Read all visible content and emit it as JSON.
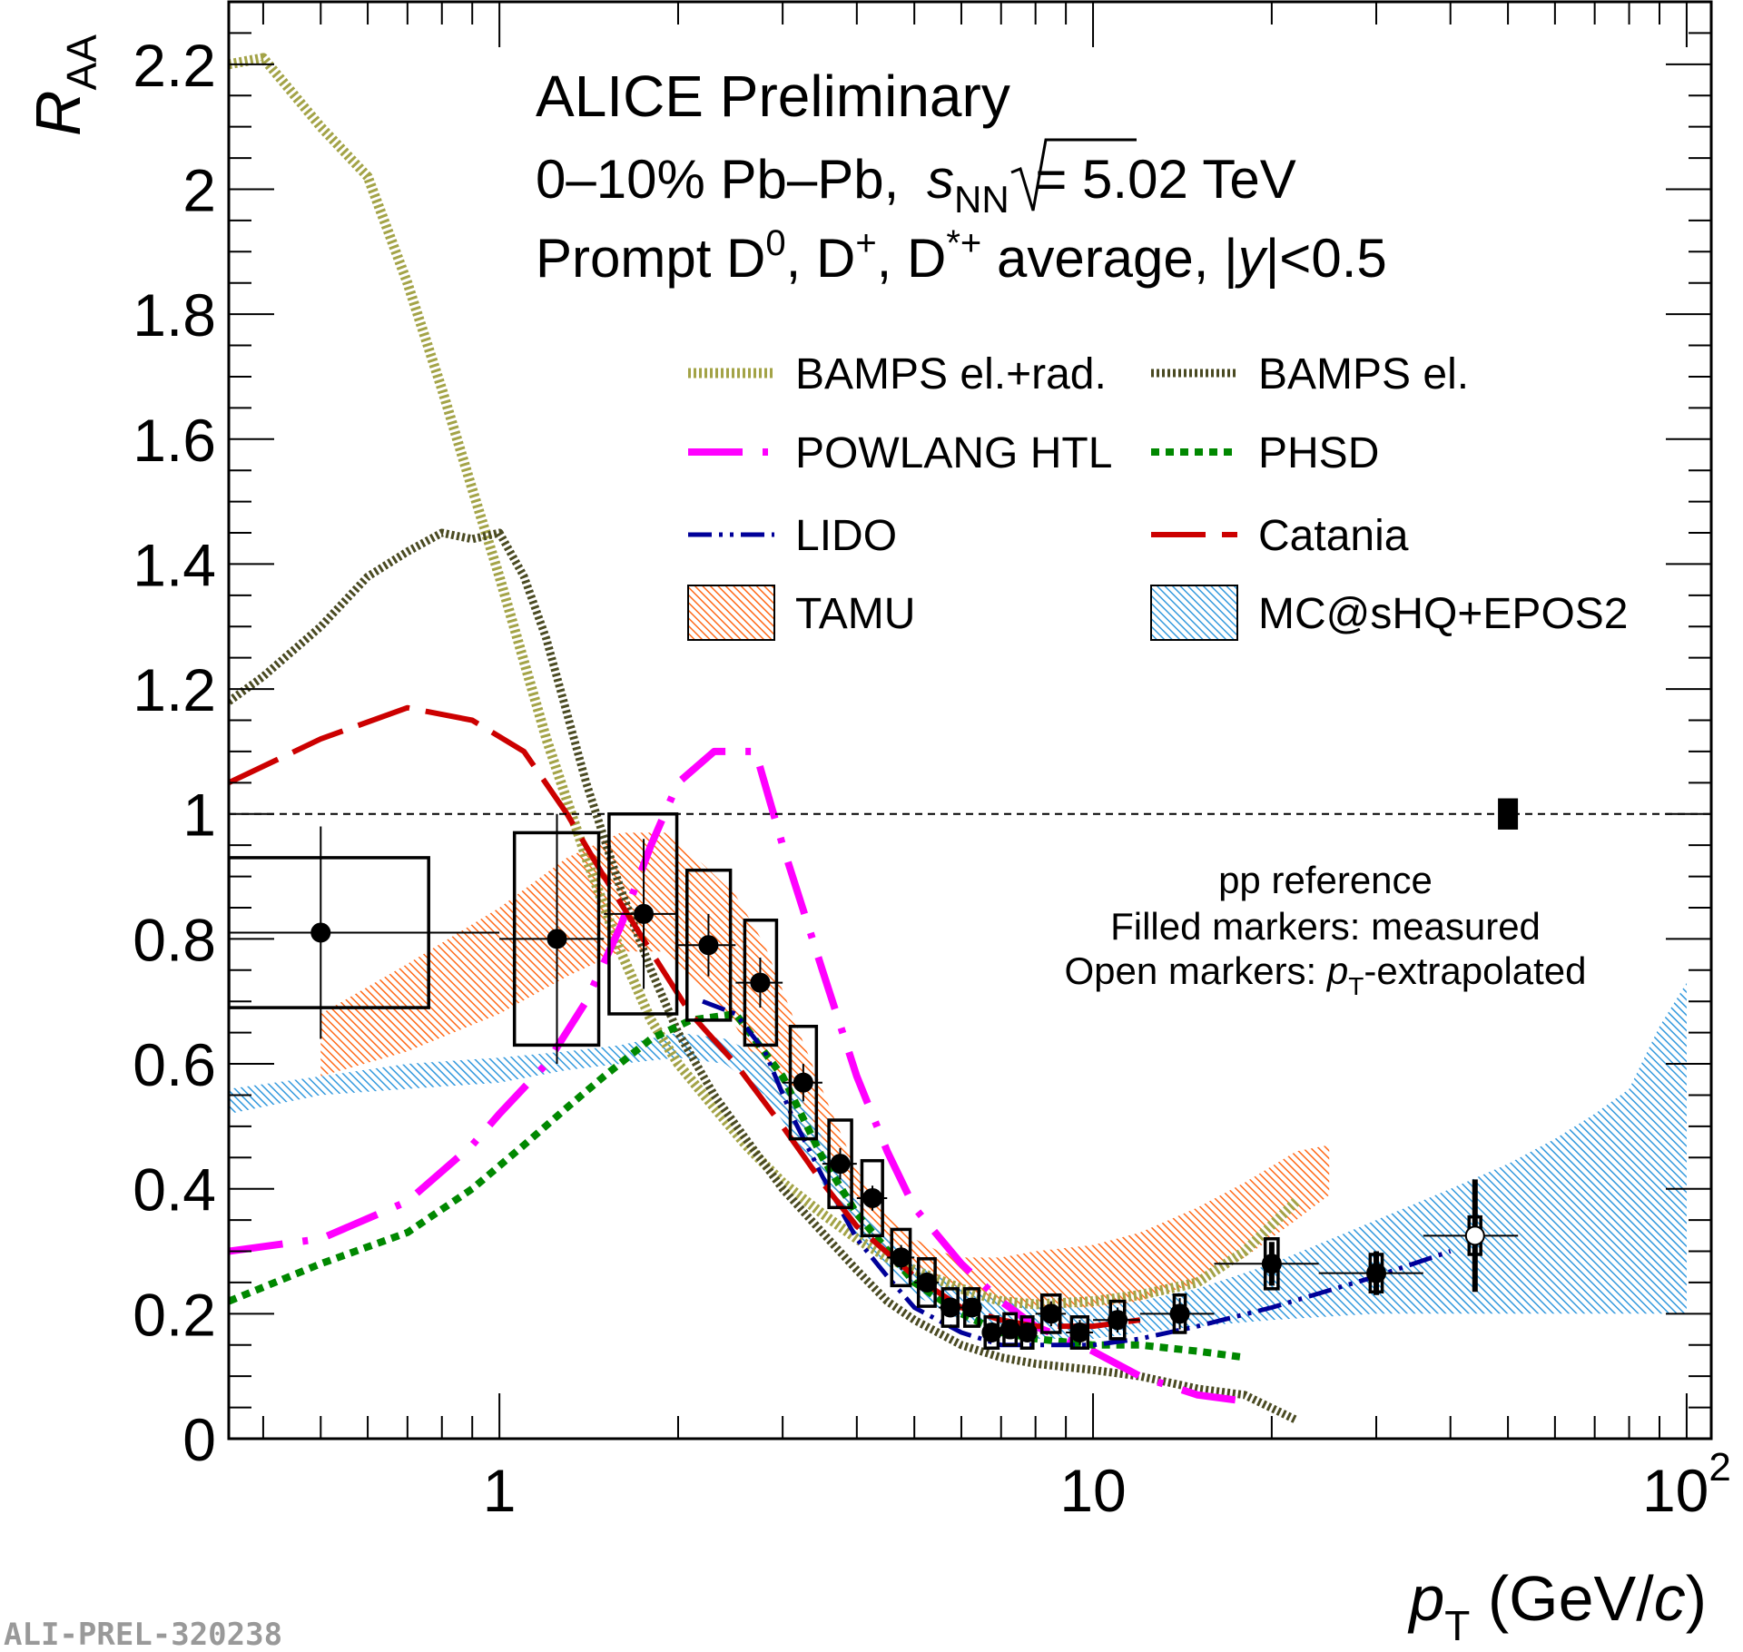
{
  "chart_data": {
    "type": "scatter",
    "title": "ALICE Preliminary",
    "subtitle": [
      "0–10%  Pb–Pb, √sNN = 5.02 TeV",
      "Prompt D0, D+, D*+ average, |y|<0.5"
    ],
    "header": {
      "line1": "ALICE Preliminary",
      "line2_prefix": "0–10%  Pb–Pb,",
      "line2_s": "s",
      "line2_nn": "NN",
      "line2_suffix": "= 5.02 TeV",
      "line3_a": "Prompt D",
      "line3_sup0": "0",
      "line3_b": ", D",
      "line3_supplus": "+",
      "line3_c": ", D",
      "line3_supstar": "*+",
      "line3_d": " average, |",
      "line3_y": "y",
      "line3_e": "|<0.5"
    },
    "xlabel": {
      "p": "p",
      "sub": "T",
      "unit_open": " (GeV/",
      "c": "c",
      "unit_close": ")"
    },
    "ylabel": {
      "R": "R",
      "sub": "AA"
    },
    "xscale": "log",
    "xlim": [
      0.35,
      110
    ],
    "ylim": [
      0,
      2.3
    ],
    "x_ticks": [
      {
        "value": 1,
        "label": "1"
      },
      {
        "value": 10,
        "label": "10"
      },
      {
        "value": 100,
        "label": "10",
        "sup": "2"
      }
    ],
    "y_ticks": [
      {
        "value": 0,
        "label": "0"
      },
      {
        "value": 0.2,
        "label": "0.2"
      },
      {
        "value": 0.4,
        "label": "0.4"
      },
      {
        "value": 0.6,
        "label": "0.6"
      },
      {
        "value": 0.8,
        "label": "0.8"
      },
      {
        "value": 1.0,
        "label": "1"
      },
      {
        "value": 1.2,
        "label": "1.2"
      },
      {
        "value": 1.4,
        "label": "1.4"
      },
      {
        "value": 1.6,
        "label": "1.6"
      },
      {
        "value": 1.8,
        "label": "1.8"
      },
      {
        "value": 2.0,
        "label": "2"
      },
      {
        "value": 2.2,
        "label": "2.2"
      }
    ],
    "reference_line": 1.0,
    "pp_reference": {
      "x": 50,
      "y": 1.0,
      "unc": 0.025,
      "line1": "pp reference",
      "line2": "Filled markers: measured",
      "line3_a": "Open markers: ",
      "line3_p": "p",
      "line3_sub": "T",
      "line3_b": "-extrapolated"
    },
    "watermark": "ALI-PREL-320238",
    "colors": {
      "bamps_elrad": "#a3a347",
      "bamps_el": "#4a4a22",
      "powlang": "#ff00ff",
      "phsd": "#008800",
      "lido": "#000099",
      "catania": "#cc0000",
      "tamu": "#ff6a1a",
      "mcshq": "#3399dd",
      "data": "#000000"
    },
    "legend": [
      {
        "key": "bamps_elrad",
        "label": "BAMPS el.+rad.",
        "style": "dotted-thick"
      },
      {
        "key": "bamps_el",
        "label": "BAMPS el.",
        "style": "dotted-thick"
      },
      {
        "key": "powlang",
        "label": "POWLANG HTL",
        "style": "dashdot-long"
      },
      {
        "key": "phsd",
        "label": "PHSD",
        "style": "dotted"
      },
      {
        "key": "lido",
        "label": "LIDO",
        "style": "dashdotdot"
      },
      {
        "key": "catania",
        "label": "Catania",
        "style": "dashed-long"
      },
      {
        "key": "tamu",
        "label": "TAMU",
        "style": "hatched-band"
      },
      {
        "key": "mcshq",
        "label": "MC@sHQ+EPOS2",
        "style": "hatched-band"
      }
    ],
    "data_points": [
      {
        "x": 0.5,
        "y": 0.81,
        "ex": [
          0.15,
          0.5
        ],
        "stat": 0.17,
        "sys": 0.12,
        "boxw": [
          0.35,
          0.76
        ],
        "open": false
      },
      {
        "x": 1.25,
        "y": 0.8,
        "ex": [
          0.25,
          0.25
        ],
        "stat": 0.2,
        "sys": 0.17,
        "boxw": [
          1.06,
          1.47
        ],
        "open": false
      },
      {
        "x": 1.75,
        "y": 0.84,
        "ex": [
          0.25,
          0.25
        ],
        "stat": 0.12,
        "sys": 0.16,
        "boxw": [
          1.53,
          1.99
        ],
        "open": false
      },
      {
        "x": 2.25,
        "y": 0.79,
        "ex": [
          0.25,
          0.25
        ],
        "stat": 0.05,
        "sys": 0.12,
        "boxw": [
          2.07,
          2.45
        ],
        "open": false
      },
      {
        "x": 2.75,
        "y": 0.73,
        "ex": [
          0.25,
          0.25
        ],
        "stat": 0.04,
        "sys": 0.1,
        "boxw": [
          2.59,
          2.93
        ],
        "open": false
      },
      {
        "x": 3.25,
        "y": 0.57,
        "ex": [
          0.25,
          0.25
        ],
        "stat": 0.03,
        "sys": 0.09,
        "boxw": [
          3.09,
          3.42
        ],
        "open": false
      },
      {
        "x": 3.75,
        "y": 0.44,
        "ex": [
          0.25,
          0.25
        ],
        "stat": 0.025,
        "sys": 0.07,
        "boxw": [
          3.59,
          3.92
        ],
        "open": false
      },
      {
        "x": 4.25,
        "y": 0.385,
        "ex": [
          0.25,
          0.25
        ],
        "stat": 0.02,
        "sys": 0.06,
        "boxw": [
          4.08,
          4.42
        ],
        "open": false
      },
      {
        "x": 4.75,
        "y": 0.29,
        "ex": [
          0.25,
          0.25
        ],
        "stat": 0.02,
        "sys": 0.045,
        "boxw": [
          4.58,
          4.92
        ],
        "open": false
      },
      {
        "x": 5.25,
        "y": 0.25,
        "ex": [
          0.25,
          0.25
        ],
        "stat": 0.015,
        "sys": 0.038,
        "boxw": [
          5.08,
          5.42
        ],
        "open": false
      },
      {
        "x": 5.75,
        "y": 0.21,
        "ex": [
          0.25,
          0.25
        ],
        "stat": 0.015,
        "sys": 0.03,
        "boxw": [
          5.58,
          5.92
        ],
        "open": false
      },
      {
        "x": 6.25,
        "y": 0.21,
        "ex": [
          0.25,
          0.25
        ],
        "stat": 0.015,
        "sys": 0.03,
        "boxw": [
          6.08,
          6.42
        ],
        "open": false
      },
      {
        "x": 6.75,
        "y": 0.17,
        "ex": [
          0.25,
          0.25
        ],
        "stat": 0.015,
        "sys": 0.025,
        "boxw": [
          6.58,
          6.92
        ],
        "open": false
      },
      {
        "x": 7.25,
        "y": 0.175,
        "ex": [
          0.25,
          0.25
        ],
        "stat": 0.015,
        "sys": 0.025,
        "boxw": [
          7.08,
          7.42
        ],
        "open": false
      },
      {
        "x": 7.75,
        "y": 0.17,
        "ex": [
          0.25,
          0.25
        ],
        "stat": 0.015,
        "sys": 0.025,
        "boxw": [
          7.58,
          7.92
        ],
        "open": false
      },
      {
        "x": 8.5,
        "y": 0.2,
        "ex": [
          0.5,
          0.5
        ],
        "stat": 0.02,
        "sys": 0.03,
        "boxw": [
          8.2,
          8.8
        ],
        "open": false
      },
      {
        "x": 9.5,
        "y": 0.17,
        "ex": [
          0.5,
          0.5
        ],
        "stat": 0.02,
        "sys": 0.025,
        "boxw": [
          9.2,
          9.8
        ],
        "open": false
      },
      {
        "x": 11.0,
        "y": 0.19,
        "ex": [
          1.0,
          1.0
        ],
        "stat": 0.02,
        "sys": 0.03,
        "boxw": [
          10.7,
          11.3
        ],
        "open": false
      },
      {
        "x": 14.0,
        "y": 0.2,
        "ex": [
          2.0,
          2.0
        ],
        "stat": 0.025,
        "sys": 0.03,
        "boxw": [
          13.7,
          14.3
        ],
        "open": false
      },
      {
        "x": 20.0,
        "y": 0.28,
        "ex": [
          4.0,
          4.0
        ],
        "stat": 0.035,
        "sys": 0.04,
        "boxw": [
          19.5,
          20.5
        ],
        "open": false
      },
      {
        "x": 30.0,
        "y": 0.265,
        "ex": [
          6.0,
          6.0
        ],
        "stat": 0.035,
        "sys": 0.03,
        "boxw": [
          29.3,
          30.7
        ],
        "open": false
      },
      {
        "x": 44.0,
        "y": 0.325,
        "ex": [
          8.0,
          8.0
        ],
        "stat": 0.09,
        "sys": 0.03,
        "boxw": [
          43.0,
          45.0
        ],
        "open": true
      }
    ],
    "series": [
      {
        "name": "BAMPS el.+rad.",
        "key": "bamps_elrad",
        "x": [
          0.35,
          0.4,
          0.5,
          0.6,
          0.7,
          0.8,
          0.9,
          1.0,
          1.2,
          1.4,
          1.6,
          1.8,
          2.0,
          2.3,
          2.6,
          3.0,
          3.5,
          4.0,
          4.5,
          5.0,
          6.0,
          7.0,
          8.0,
          10.0,
          12.0,
          15.0,
          18.0,
          22.0
        ],
        "y": [
          2.2,
          2.21,
          2.1,
          2.02,
          1.85,
          1.68,
          1.52,
          1.38,
          1.12,
          0.93,
          0.78,
          0.67,
          0.6,
          0.53,
          0.47,
          0.41,
          0.36,
          0.32,
          0.29,
          0.27,
          0.24,
          0.22,
          0.215,
          0.22,
          0.23,
          0.25,
          0.3,
          0.38
        ]
      },
      {
        "name": "BAMPS el.",
        "key": "bamps_el",
        "x": [
          0.35,
          0.4,
          0.5,
          0.6,
          0.7,
          0.8,
          0.9,
          1.0,
          1.1,
          1.2,
          1.4,
          1.6,
          1.8,
          2.0,
          2.3,
          2.6,
          3.0,
          3.5,
          4.0,
          4.5,
          5.0,
          6.0,
          7.0,
          8.0,
          10.0,
          12.0,
          15.0,
          18.0,
          22.0
        ],
        "y": [
          1.18,
          1.22,
          1.3,
          1.38,
          1.42,
          1.45,
          1.44,
          1.45,
          1.38,
          1.28,
          1.05,
          0.88,
          0.75,
          0.65,
          0.55,
          0.48,
          0.4,
          0.33,
          0.27,
          0.22,
          0.19,
          0.15,
          0.13,
          0.12,
          0.11,
          0.1,
          0.08,
          0.07,
          0.03
        ]
      },
      {
        "name": "POWLANG HTL",
        "key": "powlang",
        "x": [
          0.35,
          0.5,
          0.7,
          0.9,
          1.0,
          1.2,
          1.4,
          1.6,
          1.8,
          2.0,
          2.3,
          2.7,
          3.0,
          3.5,
          4.0,
          4.5,
          5.0,
          6.0,
          7.0,
          8.0,
          10.0,
          12.0,
          15.0,
          18.0
        ],
        "y": [
          0.3,
          0.32,
          0.38,
          0.47,
          0.52,
          0.6,
          0.7,
          0.82,
          0.95,
          1.05,
          1.1,
          1.1,
          0.95,
          0.75,
          0.58,
          0.46,
          0.37,
          0.28,
          0.22,
          0.18,
          0.14,
          0.1,
          0.07,
          0.06
        ]
      },
      {
        "name": "PHSD",
        "key": "phsd",
        "x": [
          0.35,
          0.5,
          0.7,
          0.9,
          1.1,
          1.3,
          1.5,
          1.8,
          2.1,
          2.5,
          3.0,
          3.5,
          4.0,
          5.0,
          6.0,
          7.0,
          8.0,
          10.0,
          12.0,
          15.0,
          18.0
        ],
        "y": [
          0.22,
          0.28,
          0.33,
          0.4,
          0.47,
          0.53,
          0.58,
          0.64,
          0.67,
          0.68,
          0.58,
          0.45,
          0.36,
          0.25,
          0.2,
          0.17,
          0.16,
          0.15,
          0.15,
          0.14,
          0.13
        ]
      },
      {
        "name": "LIDO",
        "key": "lido",
        "x": [
          2.2,
          2.5,
          2.8,
          3.1,
          3.5,
          4.0,
          4.5,
          5.0,
          6.0,
          7.0,
          8.0,
          10.0,
          12.0,
          15.0,
          20.0,
          30.0,
          40.0
        ],
        "y": [
          0.7,
          0.68,
          0.62,
          0.52,
          0.42,
          0.32,
          0.26,
          0.21,
          0.17,
          0.15,
          0.15,
          0.15,
          0.16,
          0.18,
          0.21,
          0.26,
          0.3
        ]
      },
      {
        "name": "Catania",
        "key": "catania",
        "x": [
          0.35,
          0.5,
          0.7,
          0.9,
          1.1,
          1.3,
          1.5,
          1.8,
          2.1,
          2.5,
          3.0,
          3.5,
          4.0,
          5.0,
          6.0,
          7.0,
          8.0,
          10.0,
          12.0
        ],
        "y": [
          1.05,
          1.12,
          1.17,
          1.15,
          1.1,
          1.0,
          0.9,
          0.78,
          0.68,
          0.6,
          0.5,
          0.41,
          0.34,
          0.26,
          0.21,
          0.19,
          0.18,
          0.18,
          0.19
        ]
      }
    ],
    "bands": [
      {
        "name": "TAMU",
        "key": "tamu",
        "x": [
          0.5,
          0.7,
          1.0,
          1.3,
          1.6,
          1.9,
          2.2,
          2.5,
          2.8,
          3.2,
          3.6,
          4.0,
          4.5,
          5.0,
          5.5,
          6.0,
          7.0,
          8.0,
          10.0,
          12.0,
          15.0,
          18.0,
          22.0,
          25.0
        ],
        "lo": [
          0.58,
          0.62,
          0.68,
          0.74,
          0.78,
          0.78,
          0.72,
          0.66,
          0.58,
          0.48,
          0.4,
          0.34,
          0.29,
          0.26,
          0.24,
          0.23,
          0.22,
          0.21,
          0.21,
          0.22,
          0.25,
          0.29,
          0.35,
          0.39
        ],
        "hi": [
          0.68,
          0.76,
          0.85,
          0.93,
          0.97,
          0.97,
          0.92,
          0.87,
          0.79,
          0.65,
          0.53,
          0.43,
          0.36,
          0.32,
          0.3,
          0.29,
          0.29,
          0.3,
          0.31,
          0.33,
          0.37,
          0.41,
          0.46,
          0.47
        ]
      },
      {
        "name": "MC@sHQ+EPOS2",
        "key": "mcshq",
        "x": [
          0.35,
          0.5,
          0.7,
          1.0,
          1.3,
          1.6,
          2.0,
          2.4,
          2.8,
          3.2,
          3.6,
          4.0,
          4.5,
          5.0,
          6.0,
          7.0,
          8.0,
          10.0,
          12.0,
          15.0,
          20.0,
          30.0,
          40.0,
          50.0,
          60.0,
          70.0,
          80.0,
          90.0,
          100.0
        ],
        "lo": [
          0.52,
          0.55,
          0.56,
          0.57,
          0.59,
          0.6,
          0.61,
          0.6,
          0.55,
          0.47,
          0.39,
          0.32,
          0.27,
          0.23,
          0.19,
          0.17,
          0.16,
          0.16,
          0.17,
          0.18,
          0.19,
          0.2,
          0.2,
          0.2,
          0.2,
          0.2,
          0.2,
          0.2,
          0.2
        ],
        "hi": [
          0.56,
          0.58,
          0.6,
          0.61,
          0.62,
          0.63,
          0.65,
          0.64,
          0.61,
          0.55,
          0.46,
          0.38,
          0.32,
          0.28,
          0.24,
          0.22,
          0.21,
          0.21,
          0.22,
          0.24,
          0.28,
          0.35,
          0.4,
          0.44,
          0.48,
          0.52,
          0.56,
          0.66,
          0.73
        ]
      }
    ]
  }
}
